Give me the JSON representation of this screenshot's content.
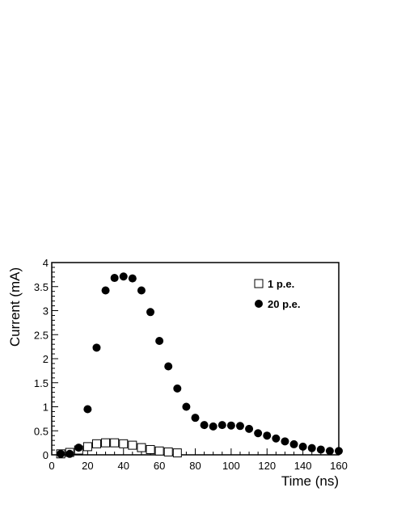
{
  "chart_data": {
    "type": "scatter",
    "xlabel": "Time (ns)",
    "ylabel": "Current (mA)",
    "xlim": [
      0,
      160
    ],
    "ylim": [
      0,
      4
    ],
    "x_ticks": [
      "0",
      "20",
      "40",
      "60",
      "80",
      "100",
      "120",
      "140",
      "160"
    ],
    "y_ticks": [
      "0",
      "0.5",
      "1",
      "1.5",
      "2",
      "2.5",
      "3",
      "3.5",
      "4"
    ],
    "grid": false,
    "legend_position": "top-right",
    "series": [
      {
        "name": "1 p.e.",
        "marker": "open-square",
        "color": "#000000",
        "x": [
          5,
          10,
          15,
          20,
          25,
          30,
          35,
          40,
          45,
          50,
          55,
          60,
          65,
          70
        ],
        "y": [
          0.02,
          0.05,
          0.1,
          0.17,
          0.23,
          0.25,
          0.25,
          0.23,
          0.2,
          0.15,
          0.11,
          0.08,
          0.06,
          0.04
        ]
      },
      {
        "name": "20 p.e.",
        "marker": "filled-circle",
        "color": "#000000",
        "x": [
          5,
          10,
          15,
          20,
          25,
          30,
          35,
          40,
          45,
          50,
          55,
          60,
          65,
          70,
          75,
          80,
          85,
          90,
          95,
          100,
          105,
          110,
          115,
          120,
          125,
          130,
          135,
          140,
          145,
          150,
          155,
          160
        ],
        "y": [
          0.02,
          0.02,
          0.15,
          0.95,
          2.23,
          3.42,
          3.68,
          3.71,
          3.67,
          3.42,
          2.97,
          2.37,
          1.84,
          1.38,
          1.0,
          0.77,
          0.62,
          0.59,
          0.62,
          0.61,
          0.6,
          0.54,
          0.45,
          0.4,
          0.34,
          0.28,
          0.22,
          0.17,
          0.14,
          0.11,
          0.08,
          0.08
        ]
      }
    ]
  }
}
